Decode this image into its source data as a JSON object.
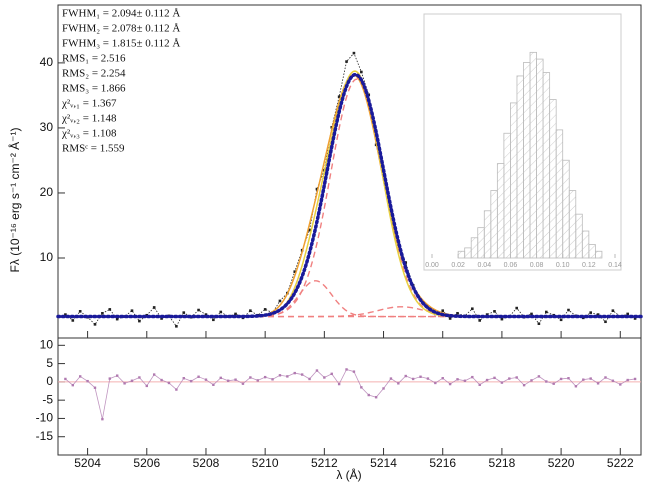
{
  "chart_data": {
    "type": "spectrum",
    "x_label": "λ (Å)",
    "y_label": "Fλ (10⁻¹⁶ erg s⁻¹ cm⁻² Å⁻¹)",
    "annotations": [
      "FWHM₁ =   2.094± 0.112 Å",
      "FWHM₂ =   2.078± 0.112 Å",
      "FWHM₃ =   1.815± 0.112 Å",
      "RMS₁ =   2.516",
      "RMS₂ =   2.254",
      "RMS₃ =   1.866",
      "χ²ᵥ,₁ =   1.367",
      "χ²ᵥ,₂ =   1.148",
      "χ²ᵥ,₃ =   1.108",
      "RMSᶜ =   1.559"
    ],
    "xlim": [
      5203,
      5222.7
    ],
    "xticks": [
      5204,
      5206,
      5208,
      5210,
      5212,
      5214,
      5216,
      5218,
      5220,
      5222
    ],
    "ylim": [
      -2.3,
      48.9
    ],
    "yticks": [
      10,
      20,
      30,
      40
    ],
    "x": [
      5203.25,
      5203.5,
      5203.75,
      5204,
      5204.25,
      5204.5,
      5204.75,
      5205,
      5205.25,
      5205.5,
      5205.75,
      5206,
      5206.25,
      5206.5,
      5206.75,
      5207,
      5207.25,
      5207.5,
      5207.75,
      5208,
      5208.25,
      5208.5,
      5208.75,
      5209,
      5209.25,
      5209.5,
      5209.75,
      5210,
      5210.25,
      5210.5,
      5210.75,
      5211,
      5211.25,
      5211.5,
      5211.75,
      5212,
      5212.25,
      5212.5,
      5212.75,
      5213,
      5213.25,
      5213.5,
      5213.75,
      5214,
      5214.25,
      5214.5,
      5214.75,
      5215,
      5215.25,
      5215.5,
      5215.75,
      5216,
      5216.25,
      5216.5,
      5216.75,
      5217,
      5217.25,
      5217.5,
      5217.75,
      5218,
      5218.25,
      5218.5,
      5218.75,
      5219,
      5219.25,
      5219.5,
      5219.75,
      5220,
      5220.25,
      5220.5,
      5220.75,
      5221,
      5221.25,
      5221.5,
      5221.75,
      5222,
      5222.25,
      5222.5
    ],
    "series": [
      {
        "color": "#222222",
        "values": [
          1.3,
          0.4,
          1.8,
          0.9,
          -0.2,
          1.5,
          2.1,
          0.6,
          1.0,
          1.9,
          0.3,
          1.2,
          2.4,
          0.7,
          1.1,
          -0.5,
          1.6,
          0.9,
          2.0,
          1.3,
          0.5,
          1.7,
          1.0,
          1.4,
          0.8,
          1.9,
          1.2,
          2.1,
          1.6,
          3.4,
          4.6,
          7.9,
          11.2,
          14.3,
          20.6,
          23.5,
          30.1,
          34.8,
          40.2,
          41.5,
          38.6,
          35.1,
          27.4,
          22.8,
          17.5,
          12.1,
          9.3,
          5.8,
          3.6,
          2.5,
          1.4,
          1.9,
          0.7,
          1.5,
          1.1,
          2.2,
          0.4,
          1.3,
          1.8,
          0.6,
          1.0,
          2.3,
          0.9,
          1.4,
          -0.1,
          1.7,
          1.2,
          0.5,
          2.0,
          1.1,
          0.8,
          1.6,
          1.3,
          0.2,
          1.9,
          1.0,
          1.4,
          0.7
        ]
      }
    ],
    "fits": [
      {
        "color": "#f0a030",
        "dash": "solid",
        "continuum": 1,
        "components": [
          {
            "center": 5213.0,
            "amplitude": 36.5,
            "sigma": 0.89
          },
          {
            "center": 5211.6,
            "amplitude": 5.5,
            "sigma": 0.6
          },
          {
            "center": 5214.6,
            "amplitude": 2,
            "sigma": 0.8
          }
        ]
      },
      {
        "color": "#e8d040",
        "dash": "solid",
        "continuum": 1,
        "components": [
          {
            "center": 5213.05,
            "amplitude": 37.5,
            "sigma": 0.88
          },
          {
            "center": 5211.7,
            "amplitude": 4.5,
            "sigma": 0.55
          }
        ]
      },
      {
        "color": "#1a1a9a",
        "dash": "dot",
        "continuum": 1,
        "components": [
          {
            "center": 5213.05,
            "amplitude": 37.2,
            "sigma": 0.95
          }
        ]
      }
    ],
    "components": {
      "color": "#f08080",
      "continuum": 1,
      "list": [
        {
          "center": 5213.1,
          "amplitude": 36.5,
          "sigma": 0.88
        },
        {
          "center": 5211.7,
          "amplitude": 5.5,
          "sigma": 0.55
        },
        {
          "center": 5214.6,
          "amplitude": 1.5,
          "sigma": 0.8
        }
      ]
    },
    "residuals": {
      "color": "#b07ab0",
      "ylim": [
        -20,
        12
      ],
      "yticks": [
        10,
        5,
        0,
        -5,
        -10,
        -15
      ],
      "values": [
        0.8,
        -0.9,
        1.5,
        0.2,
        -1.6,
        -10.2,
        0.9,
        1.7,
        -0.4,
        0.3,
        1.2,
        -1.1,
        2.0,
        0.5,
        -0.3,
        -2.1,
        1.0,
        0.2,
        1.4,
        0.6,
        -0.8,
        1.1,
        0.3,
        0.6,
        -0.5,
        1.2,
        0.4,
        1.3,
        0.7,
        1.8,
        1.5,
        2.4,
        2.0,
        0.8,
        3.1,
        1.2,
        2.2,
        -0.6,
        3.4,
        2.8,
        -1.5,
        -3.6,
        -4.2,
        -1.8,
        0.9,
        -0.4,
        1.6,
        0.8,
        1.4,
        0.9,
        -0.3,
        1.0,
        -0.6,
        0.7,
        0.3,
        1.3,
        -0.8,
        0.5,
        1.1,
        -0.2,
        0.9,
        1.2,
        -0.9,
        0.4,
        1.5,
        0.1,
        -0.5,
        0.8,
        1.0,
        -1.2,
        0.6,
        0.9,
        -0.4,
        1.2,
        0.3,
        -0.7,
        0.5,
        0.8
      ]
    },
    "inset": {
      "type": "histogram",
      "color": "#bbbbbb",
      "bins": [
        0.02,
        0.025,
        0.03,
        0.035,
        0.04,
        0.045,
        0.05,
        0.055,
        0.06,
        0.065,
        0.07,
        0.075,
        0.08,
        0.085,
        0.09,
        0.095,
        0.1,
        0.105,
        0.11,
        0.115,
        0.12,
        0.125,
        0.13
      ],
      "counts": [
        2,
        3,
        6,
        9,
        14,
        20,
        28,
        37,
        46,
        54,
        58,
        61,
        59,
        55,
        47,
        38,
        29,
        20,
        13,
        8,
        4,
        2
      ],
      "xlim": [
        0,
        0.14
      ],
      "ylim": [
        0,
        70
      ],
      "xticks": [
        {
          "value": 0,
          "label": "0.00"
        },
        {
          "value": 0.02,
          "label": "0.02"
        },
        {
          "value": 0.04,
          "label": "0.04"
        },
        {
          "value": 0.06,
          "label": "0.06"
        },
        {
          "value": 0.08,
          "label": "0.08"
        },
        {
          "value": 0.1,
          "label": "0.10"
        },
        {
          "value": 0.12,
          "label": "0.12"
        },
        {
          "value": 0.14,
          "label": "0.14"
        }
      ]
    }
  }
}
